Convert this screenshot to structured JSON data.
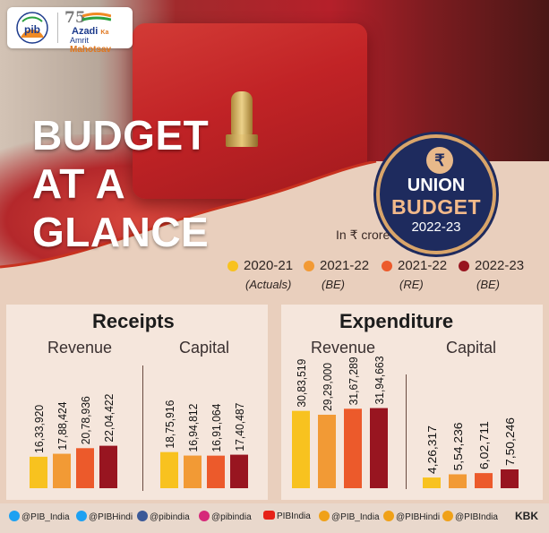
{
  "logo": {
    "pib": "pib",
    "aka_number": "75",
    "aka_line1": "Azadi",
    "aka_ka": "Ka",
    "aka_line2a": "Amrit",
    "aka_line2b": "Mahotsav"
  },
  "headline": [
    "BUDGET",
    "AT A",
    "GLANCE"
  ],
  "badge": {
    "rupee": "₹",
    "line1": "UNION",
    "line2": "BUDGET",
    "line3": "2022-23"
  },
  "unit_note": "In ₹ crore",
  "legend": [
    {
      "year": "2020-21",
      "sub": "(Actuals)",
      "color": "#f8c21f"
    },
    {
      "year": "2021-22",
      "sub": "(BE)",
      "color": "#f29a35"
    },
    {
      "year": "2021-22",
      "sub": "(RE)",
      "color": "#ec5a2b"
    },
    {
      "year": "2022-23",
      "sub": "(BE)",
      "color": "#981520"
    }
  ],
  "chart_data": [
    {
      "type": "bar",
      "title": "Receipts",
      "groups": [
        {
          "name": "Revenue",
          "values": [
            1633920,
            1788424,
            2078936,
            2204422
          ],
          "labels": [
            "16,33,920",
            "17,88,424",
            "20,78,936",
            "22,04,422"
          ]
        },
        {
          "name": "Capital",
          "values": [
            1875916,
            1694812,
            1691064,
            1740487
          ],
          "labels": [
            "18,75,916",
            "16,94,812",
            "16,91,064",
            "17,40,487"
          ]
        }
      ],
      "series": [
        "2020-21 (Actuals)",
        "2021-22 (BE)",
        "2021-22 (RE)",
        "2022-23 (BE)"
      ],
      "unit": "₹ crore"
    },
    {
      "type": "bar",
      "title": "Expenditure",
      "groups": [
        {
          "name": "Revenue",
          "values": [
            3083519,
            2929000,
            3167289,
            3194663
          ],
          "labels": [
            "30,83,519",
            "29,29,000",
            "31,67,289",
            "31,94,663"
          ]
        },
        {
          "name": "Capital",
          "values": [
            426317,
            554236,
            602711,
            750246
          ],
          "labels": [
            "4,26,317",
            "5,54,236",
            "6,02,711",
            "7,50,246"
          ]
        }
      ],
      "series": [
        "2020-21 (Actuals)",
        "2021-22 (BE)",
        "2021-22 (RE)",
        "2022-23 (BE)"
      ],
      "unit": "₹ crore"
    }
  ],
  "footer": {
    "items": [
      {
        "icon": "twitter-icon",
        "label": "@PIB_India"
      },
      {
        "icon": "twitter-icon",
        "label": "@PIBHindi"
      },
      {
        "icon": "facebook-icon",
        "label": "@pibindia"
      },
      {
        "icon": "instagram-icon",
        "label": "@pibindia"
      },
      {
        "icon": "youtube-icon",
        "label": "PIBIndia"
      },
      {
        "icon": "koo-icon",
        "label": "@PIB_India"
      },
      {
        "icon": "koo-icon",
        "label": "@PIBHindi"
      },
      {
        "icon": "koo-icon",
        "label": "@PIBIndia"
      }
    ],
    "credit": "KBK"
  }
}
